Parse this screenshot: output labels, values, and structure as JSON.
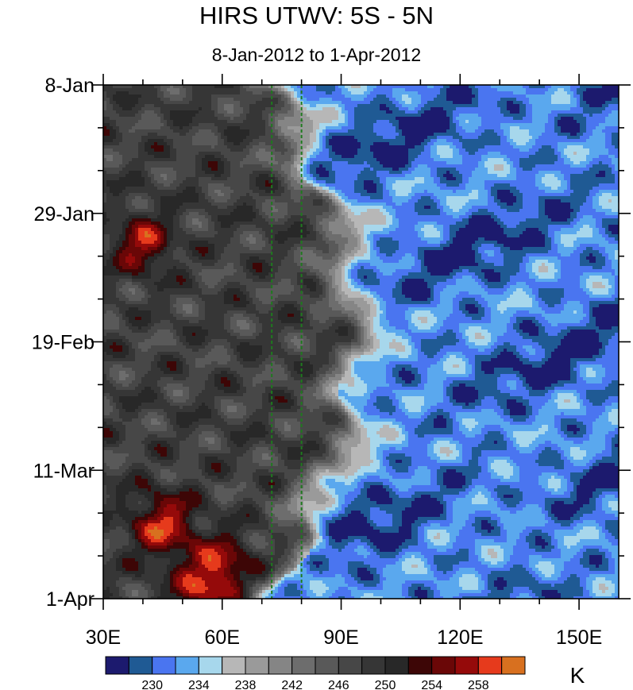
{
  "chart_data": {
    "type": "heatmap",
    "title": "HIRS UTWV: 5S - 5N",
    "subtitle": "8-Jan-2012 to 1-Apr-2012",
    "x_ticks": [
      {
        "value": 30,
        "label": "30E"
      },
      {
        "value": 60,
        "label": "60E"
      },
      {
        "value": 90,
        "label": "90E"
      },
      {
        "value": 120,
        "label": "120E"
      },
      {
        "value": 150,
        "label": "150E"
      }
    ],
    "xlim": [
      30,
      160
    ],
    "y_ticks": [
      {
        "value": 0,
        "label": "8-Jan"
      },
      {
        "value": 21,
        "label": "29-Jan"
      },
      {
        "value": 42,
        "label": "19-Feb"
      },
      {
        "value": 63,
        "label": "11-Mar"
      },
      {
        "value": 84,
        "label": "1-Apr"
      }
    ],
    "ylim": [
      "8-Jan-2012",
      "1-Apr-2012"
    ],
    "reference_lines_x": [
      72.5,
      80
    ],
    "colorbar": {
      "unit": "K",
      "levels": [
        228,
        230,
        232,
        234,
        236,
        238,
        240,
        242,
        244,
        246,
        248,
        250,
        252,
        254,
        256,
        258,
        260
      ],
      "tick_labels": [
        "230",
        "234",
        "238",
        "242",
        "246",
        "250",
        "254",
        "258"
      ],
      "colors": [
        "#1c1a6e",
        "#1f5a94",
        "#4a75f0",
        "#5aa8ee",
        "#a7d7ec",
        "#b7b7b7",
        "#9a9a9a",
        "#858585",
        "#6d6d6d",
        "#595959",
        "#474747",
        "#363636",
        "#282828",
        "#3d0606",
        "#6a0707",
        "#950a0a",
        "#e63a1c",
        "#d8701f"
      ]
    }
  }
}
